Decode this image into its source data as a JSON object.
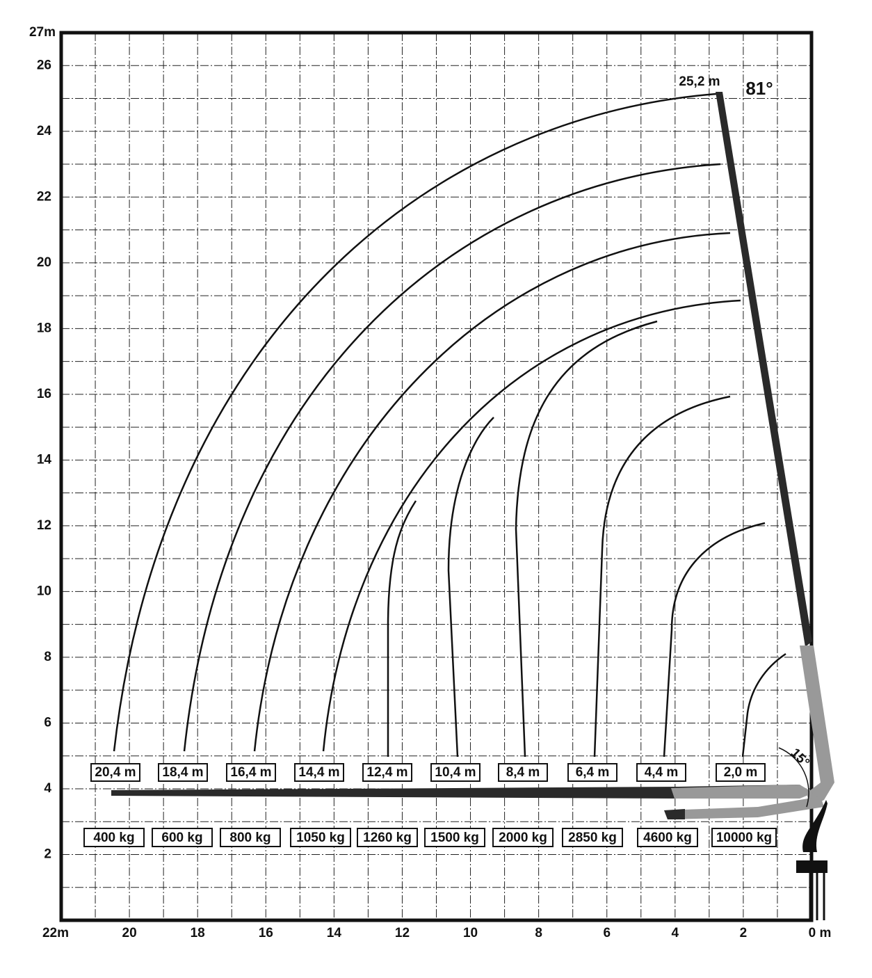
{
  "y_axis": {
    "labels": [
      "27m",
      "26",
      "24",
      "22",
      "20",
      "18",
      "16",
      "14",
      "12",
      "10",
      "8",
      "6",
      "4",
      "2"
    ]
  },
  "x_axis": {
    "labels": [
      "22m",
      "20",
      "18",
      "16",
      "14",
      "12",
      "10",
      "8",
      "6",
      "4",
      "2",
      "0 m"
    ]
  },
  "reach_labels": [
    "20,4 m",
    "18,4 m",
    "16,4 m",
    "14,4 m",
    "12,4 m",
    "10,4 m",
    "8,4 m",
    "6,4 m",
    "4,4 m",
    "2,0 m"
  ],
  "load_labels": [
    "400 kg",
    "600 kg",
    "800 kg",
    "1050 kg",
    "1260 kg",
    "1500 kg",
    "2000 kg",
    "2850 kg",
    "4600 kg",
    "10000 kg"
  ],
  "tip_height": "25,2 m",
  "max_angle": "81°",
  "min_angle": "15°"
}
